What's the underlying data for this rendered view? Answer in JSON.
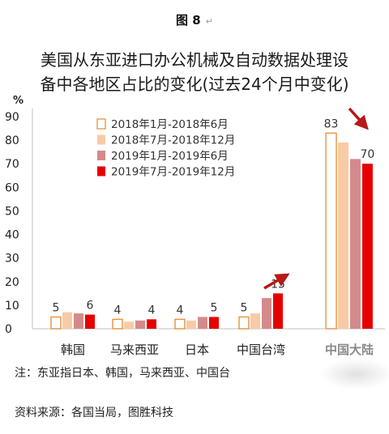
{
  "figure_label": "图 8",
  "return_mark": "↵",
  "note": "注：东亚指日本、韩国，马来西亚、中国台",
  "source": "资料来源：各国当局，图胜科技",
  "colors": {
    "outline_series": "#e8913a",
    "series_2": "#f8cba6",
    "series_3": "#d48a8a",
    "series_4": "#e60000",
    "arrow": "#b81818",
    "axis": "#bfbfbf"
  },
  "chart_data": {
    "type": "bar",
    "title_lines": [
      "美国从东亚进口办公机械及自动数据处理设",
      "备中各地区占比的变化(过去24个月中变化)"
    ],
    "ylabel": "%",
    "ylim": [
      0,
      90
    ],
    "yticks": [
      0,
      10,
      20,
      30,
      40,
      50,
      60,
      70,
      80,
      90
    ],
    "grid": false,
    "legend_position": "top-left",
    "categories": [
      "韩国",
      "马来西亚",
      "日本",
      "中国台湾",
      "中国大陆"
    ],
    "series": [
      {
        "name": "2018年1月-2018年6月",
        "values": [
          5,
          4,
          4,
          5,
          83
        ]
      },
      {
        "name": "2018年7月-2018年12月",
        "values": [
          7,
          3,
          3.5,
          6.5,
          79
        ]
      },
      {
        "name": "2019年1月-2019年6月",
        "values": [
          6.5,
          3.5,
          5,
          13,
          72
        ]
      },
      {
        "name": "2019年7月-2019年12月",
        "values": [
          6,
          4,
          5,
          15,
          70
        ]
      }
    ],
    "data_labels": [
      {
        "category": "韩国",
        "series": 0,
        "text": "5"
      },
      {
        "category": "韩国",
        "series": 3,
        "text": "6"
      },
      {
        "category": "马来西亚",
        "series": 0,
        "text": "4"
      },
      {
        "category": "马来西亚",
        "series": 3,
        "text": "4"
      },
      {
        "category": "日本",
        "series": 0,
        "text": "4"
      },
      {
        "category": "日本",
        "series": 3,
        "text": "5"
      },
      {
        "category": "中国台湾",
        "series": 0,
        "text": "5"
      },
      {
        "category": "中国台湾",
        "series": 3,
        "text": "15"
      },
      {
        "category": "中国大陆",
        "series": 0,
        "text": "83"
      },
      {
        "category": "中国大陆",
        "series": 3,
        "text": "70"
      }
    ],
    "annotations": [
      {
        "type": "arrow",
        "near_category": "中国台湾",
        "direction": "up-right"
      },
      {
        "type": "arrow",
        "near_category": "中国大陆",
        "direction": "down-right"
      }
    ]
  }
}
